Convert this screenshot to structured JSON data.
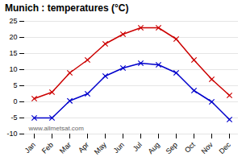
{
  "chart_data": {
    "type": "line",
    "title": "Munich : temperatures (°C)",
    "categories": [
      "Jan",
      "Feb",
      "Mar",
      "Apr",
      "May",
      "Jun",
      "Jul",
      "Aug",
      "Sep",
      "Oct",
      "Nov",
      "Dec"
    ],
    "series": [
      {
        "color": "#cc0000",
        "values": [
          1,
          3,
          9,
          13,
          18,
          21,
          23,
          23,
          19.5,
          13,
          7,
          2
        ]
      },
      {
        "color": "#0000cc",
        "values": [
          -5,
          -5,
          0.3,
          2.5,
          8,
          10.5,
          12,
          11.5,
          9,
          3.5,
          0,
          -5.5
        ]
      }
    ],
    "marker": "x",
    "ylim": [
      -10,
      25
    ],
    "yticks": [
      -10,
      -5,
      0,
      5,
      10,
      15,
      20,
      25
    ],
    "grid": true,
    "annotations": [
      "www.allmetsat.com"
    ]
  }
}
